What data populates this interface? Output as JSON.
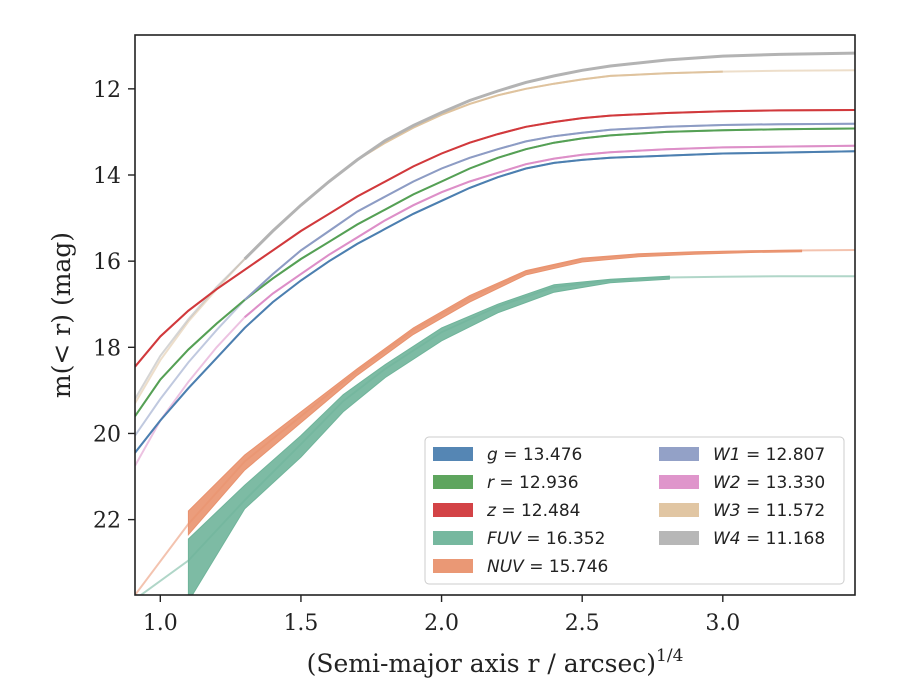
{
  "chart_data": {
    "type": "line",
    "xlabel": "(Semi-major axis r / arcsec)",
    "xlabel_superscript": "1/4",
    "ylabel": "m(< r) (mag)",
    "xlim": [
      0.91,
      3.47
    ],
    "ylim": [
      23.75,
      10.75
    ],
    "y_inverted": true,
    "grid": false,
    "legend_position": "lower-right",
    "x_ticks": [
      1.0,
      1.5,
      2.0,
      2.5,
      3.0
    ],
    "x_tick_labels": [
      "1.0",
      "1.5",
      "2.0",
      "2.5",
      "3.0"
    ],
    "y_ticks": [
      12,
      14,
      16,
      18,
      20,
      22
    ],
    "y_tick_labels": [
      "12",
      "14",
      "16",
      "18",
      "20",
      "22"
    ],
    "series": [
      {
        "name": "g",
        "legend_value": "13.476",
        "color": "#4c7fb0",
        "x": [
          0.91,
          1.0,
          1.1,
          1.2,
          1.3,
          1.4,
          1.5,
          1.6,
          1.7,
          1.8,
          1.9,
          2.0,
          2.1,
          2.2,
          2.3,
          2.4,
          2.5,
          2.6,
          2.8,
          3.0,
          3.2,
          3.47
        ],
        "y": [
          20.45,
          19.7,
          18.95,
          18.25,
          17.55,
          16.95,
          16.45,
          16.0,
          15.6,
          15.25,
          14.9,
          14.6,
          14.3,
          14.05,
          13.85,
          13.72,
          13.65,
          13.6,
          13.55,
          13.5,
          13.48,
          13.45
        ],
        "width": 2
      },
      {
        "name": "r",
        "legend_value": "12.936",
        "color": "#55a055",
        "x": [
          0.91,
          1.0,
          1.1,
          1.2,
          1.3,
          1.4,
          1.5,
          1.6,
          1.7,
          1.8,
          1.9,
          2.0,
          2.1,
          2.2,
          2.3,
          2.4,
          2.5,
          2.6,
          2.8,
          3.0,
          3.2,
          3.47
        ],
        "y": [
          19.6,
          18.75,
          18.05,
          17.45,
          16.9,
          16.4,
          15.95,
          15.55,
          15.15,
          14.8,
          14.45,
          14.15,
          13.85,
          13.6,
          13.4,
          13.25,
          13.15,
          13.08,
          13.0,
          12.96,
          12.94,
          12.92
        ],
        "width": 2
      },
      {
        "name": "z",
        "legend_value": "12.484",
        "color": "#d1393c",
        "x": [
          0.91,
          1.0,
          1.1,
          1.2,
          1.3,
          1.4,
          1.5,
          1.6,
          1.7,
          1.8,
          1.9,
          2.0,
          2.1,
          2.2,
          2.3,
          2.4,
          2.5,
          2.6,
          2.8,
          3.0,
          3.2,
          3.47
        ],
        "y": [
          18.45,
          17.75,
          17.15,
          16.65,
          16.2,
          15.75,
          15.3,
          14.9,
          14.5,
          14.15,
          13.8,
          13.5,
          13.25,
          13.05,
          12.88,
          12.77,
          12.68,
          12.62,
          12.56,
          12.52,
          12.5,
          12.49
        ],
        "width": 2
      },
      {
        "name": "FUV",
        "legend_value": "16.352",
        "color": "#6fb49a",
        "x": [
          0.91,
          1.1,
          1.3,
          1.5,
          1.65,
          1.8,
          2.0,
          2.2,
          2.4,
          2.6,
          2.8,
          3.0,
          3.2,
          3.47
        ],
        "y": [
          23.85,
          22.95,
          21.55,
          20.25,
          19.25,
          18.5,
          17.65,
          17.05,
          16.6,
          16.45,
          16.38,
          16.36,
          16.35,
          16.35
        ],
        "band_x": [
          1.1,
          1.3,
          1.5,
          1.65,
          1.8,
          2.0,
          2.2,
          2.4,
          2.6,
          2.81
        ],
        "band_hi": [
          22.45,
          21.2,
          20.05,
          19.1,
          18.4,
          17.55,
          17.0,
          16.55,
          16.42,
          16.35
        ],
        "band_lo": [
          23.9,
          21.75,
          20.55,
          19.5,
          18.7,
          17.85,
          17.2,
          16.72,
          16.5,
          16.42
        ]
      },
      {
        "name": "NUV",
        "legend_value": "15.746",
        "color": "#e9926e",
        "x": [
          0.91,
          1.1,
          1.3,
          1.5,
          1.7,
          1.9,
          2.1,
          2.3,
          2.5,
          2.7,
          2.9,
          3.1,
          3.3,
          3.47
        ],
        "y": [
          23.75,
          22.1,
          20.65,
          19.6,
          18.55,
          17.6,
          16.85,
          16.25,
          15.95,
          15.85,
          15.8,
          15.77,
          15.75,
          15.74
        ],
        "band_x": [
          1.1,
          1.3,
          1.5,
          1.7,
          1.9,
          2.1,
          2.3,
          2.5,
          2.7,
          2.9,
          3.1,
          3.28
        ],
        "band_hi": [
          21.8,
          20.5,
          19.5,
          18.5,
          17.55,
          16.8,
          16.22,
          15.93,
          15.83,
          15.78,
          15.76,
          15.74
        ],
        "band_lo": [
          22.35,
          20.85,
          19.75,
          18.65,
          17.7,
          16.95,
          16.32,
          16.02,
          15.9,
          15.84,
          15.8,
          15.78
        ]
      },
      {
        "name": "W1",
        "legend_value": "12.807",
        "color": "#8d9cc4",
        "x": [
          0.91,
          1.0,
          1.1,
          1.2,
          1.3,
          1.4,
          1.5,
          1.6,
          1.7,
          1.8,
          1.9,
          2.0,
          2.1,
          2.2,
          2.3,
          2.4,
          2.5,
          2.6,
          2.8,
          3.0,
          3.2,
          3.47
        ],
        "y": [
          20.05,
          19.2,
          18.35,
          17.6,
          16.9,
          16.3,
          15.75,
          15.3,
          14.85,
          14.5,
          14.15,
          13.85,
          13.6,
          13.4,
          13.22,
          13.1,
          13.02,
          12.95,
          12.88,
          12.84,
          12.82,
          12.81
        ],
        "width": 2
      },
      {
        "name": "W2",
        "legend_value": "13.330",
        "color": "#dd8fc8",
        "x": [
          0.91,
          1.0,
          1.1,
          1.2,
          1.3,
          1.4,
          1.5,
          1.6,
          1.7,
          1.8,
          1.9,
          2.0,
          2.1,
          2.2,
          2.3,
          2.4,
          2.5,
          2.6,
          2.8,
          3.0,
          3.2,
          3.47
        ],
        "y": [
          20.75,
          19.7,
          18.8,
          18.0,
          17.3,
          16.75,
          16.3,
          15.85,
          15.45,
          15.05,
          14.7,
          14.4,
          14.15,
          13.95,
          13.75,
          13.62,
          13.53,
          13.47,
          13.4,
          13.36,
          13.34,
          13.32
        ],
        "width": 2
      },
      {
        "name": "W3",
        "legend_value": "11.572",
        "color": "#dfc39e",
        "x": [
          0.91,
          1.0,
          1.1,
          1.2,
          1.3,
          1.4,
          1.5,
          1.6,
          1.7,
          1.8,
          1.9,
          2.0,
          2.1,
          2.2,
          2.3,
          2.4,
          2.5,
          2.6,
          2.8,
          3.0,
          3.2,
          3.47
        ],
        "y": [
          19.3,
          18.3,
          17.4,
          16.65,
          15.95,
          15.3,
          14.7,
          14.15,
          13.65,
          13.25,
          12.9,
          12.6,
          12.35,
          12.15,
          12.0,
          11.88,
          11.78,
          11.7,
          11.64,
          11.6,
          11.58,
          11.57
        ],
        "width": 2
      },
      {
        "name": "W4",
        "legend_value": "11.168",
        "color": "#b3b3b3",
        "x": [
          0.91,
          1.0,
          1.1,
          1.2,
          1.3,
          1.4,
          1.5,
          1.6,
          1.7,
          1.8,
          1.9,
          2.0,
          2.1,
          2.2,
          2.3,
          2.4,
          2.5,
          2.6,
          2.8,
          3.0,
          3.2,
          3.47
        ],
        "y": [
          19.2,
          18.2,
          17.35,
          16.6,
          15.95,
          15.3,
          14.7,
          14.15,
          13.65,
          13.2,
          12.85,
          12.55,
          12.27,
          12.05,
          11.85,
          11.7,
          11.57,
          11.47,
          11.33,
          11.24,
          11.2,
          11.17
        ],
        "width": 3
      }
    ]
  }
}
